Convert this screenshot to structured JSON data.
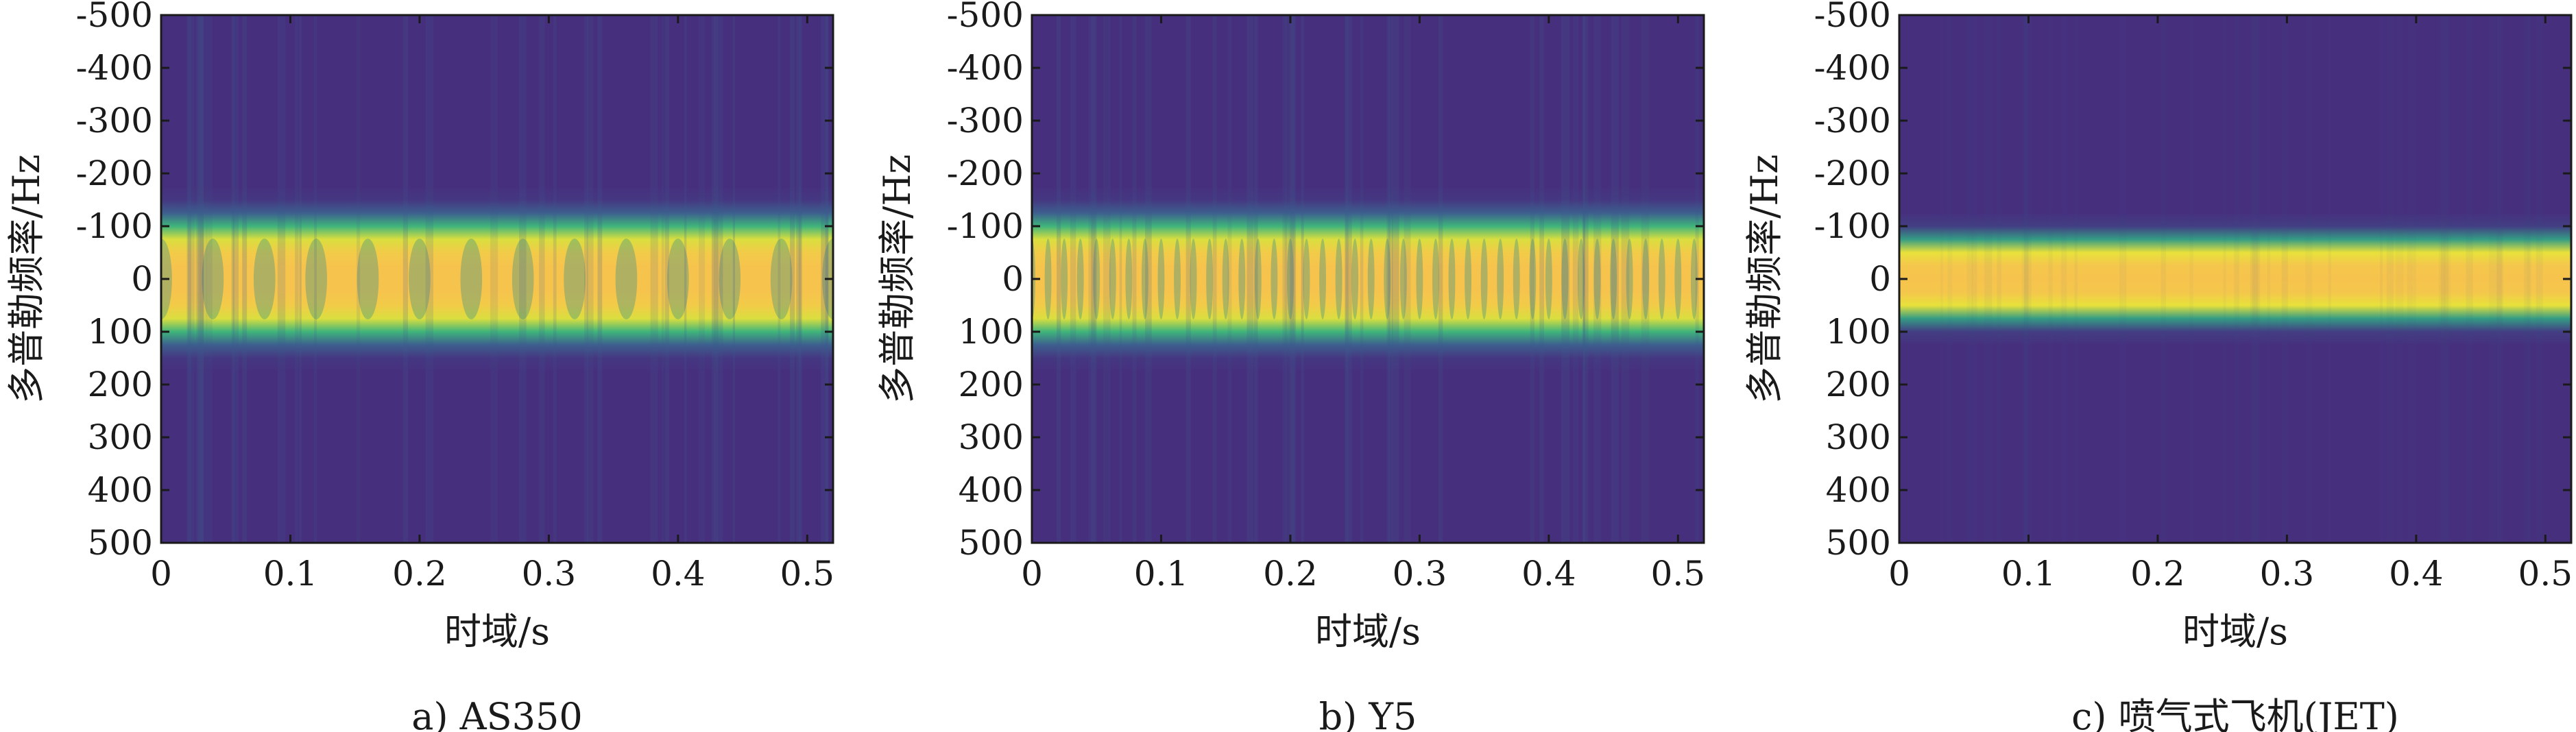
{
  "chart_data": [
    {
      "type": "heatmap",
      "caption": "a) AS350",
      "xlabel": "时域/s",
      "ylabel": "多普勒频率/Hz",
      "xlim": [
        0,
        0.52
      ],
      "ylim": [
        -500,
        500
      ],
      "x_ticks": [
        0,
        0.1,
        0.2,
        0.3,
        0.4,
        0.5
      ],
      "x_tick_labels": [
        "0",
        "0.1",
        "0.2",
        "0.3",
        "0.4",
        "0.5"
      ],
      "y_ticks": [
        -500,
        -400,
        -300,
        -200,
        -100,
        0,
        100,
        200,
        300,
        400,
        500
      ],
      "y_tick_labels": [
        "-500",
        "-400",
        "-300",
        "-200",
        "-100",
        "0",
        "100",
        "200",
        "300",
        "400",
        "500"
      ],
      "energy_band_hz": [
        -100,
        100
      ],
      "modulation_period_s": 0.04,
      "colormap": [
        "#46307e",
        "#3e5b8e",
        "#2d8c8a",
        "#3fb57b",
        "#9fd34e",
        "#e8e13b",
        "#f6c44d"
      ]
    },
    {
      "type": "heatmap",
      "caption": "b) Y5",
      "xlabel": "时域/s",
      "ylabel": "多普勒频率/Hz",
      "xlim": [
        0,
        0.52
      ],
      "ylim": [
        -500,
        500
      ],
      "x_ticks": [
        0,
        0.1,
        0.2,
        0.3,
        0.4,
        0.5
      ],
      "x_tick_labels": [
        "0",
        "0.1",
        "0.2",
        "0.3",
        "0.4",
        "0.5"
      ],
      "y_ticks": [
        -500,
        -400,
        -300,
        -200,
        -100,
        0,
        100,
        200,
        300,
        400,
        500
      ],
      "y_tick_labels": [
        "-500",
        "-400",
        "-300",
        "-200",
        "-100",
        "0",
        "100",
        "200",
        "300",
        "400",
        "500"
      ],
      "energy_band_hz": [
        -100,
        100
      ],
      "modulation_period_s": 0.0125,
      "colormap": [
        "#46307e",
        "#3e5b8e",
        "#2d8c8a",
        "#3fb57b",
        "#9fd34e",
        "#e8e13b",
        "#f6c44d"
      ]
    },
    {
      "type": "heatmap",
      "caption": "c) 喷气式飞机(JET)",
      "xlabel": "时域/s",
      "ylabel": "多普勒频率/Hz",
      "xlim": [
        0,
        0.52
      ],
      "ylim": [
        -500,
        500
      ],
      "x_ticks": [
        0,
        0.1,
        0.2,
        0.3,
        0.4,
        0.5
      ],
      "x_tick_labels": [
        "0",
        "0.1",
        "0.2",
        "0.3",
        "0.4",
        "0.5"
      ],
      "y_ticks": [
        -500,
        -400,
        -300,
        -200,
        -100,
        0,
        100,
        200,
        300,
        400,
        500
      ],
      "y_tick_labels": [
        "-500",
        "-400",
        "-300",
        "-200",
        "-100",
        "0",
        "100",
        "200",
        "300",
        "400",
        "500"
      ],
      "energy_band_hz": [
        -70,
        70
      ],
      "modulation_period_s": 0,
      "colormap": [
        "#46307e",
        "#3e5b8e",
        "#2d8c8a",
        "#3fb57b",
        "#9fd34e",
        "#e8e13b",
        "#f6c44d"
      ]
    }
  ]
}
